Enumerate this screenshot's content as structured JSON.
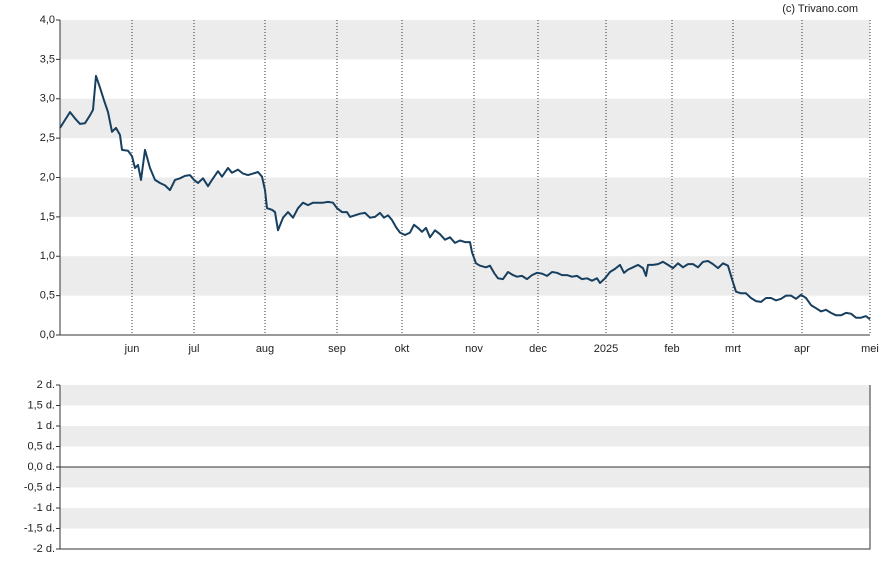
{
  "credit": "(c) Trivano.com",
  "chart_data": [
    {
      "type": "line",
      "x": [
        0,
        5,
        10,
        15,
        20,
        25,
        30,
        33,
        36,
        40,
        44,
        48,
        52,
        56,
        60,
        62,
        68,
        72,
        75,
        78,
        81,
        85,
        90,
        95,
        100,
        105,
        110,
        115,
        120,
        125,
        130,
        134,
        138,
        143,
        148,
        152,
        158,
        162,
        168,
        172,
        178,
        183,
        188,
        193,
        198,
        202,
        205,
        207,
        212,
        215,
        218,
        223,
        228,
        233,
        238,
        243,
        248,
        253,
        258,
        263,
        268,
        273,
        277,
        282,
        287,
        290,
        295,
        300,
        305,
        310,
        315,
        320,
        324,
        328,
        332,
        336,
        340,
        345,
        350,
        354,
        358,
        362,
        366,
        370,
        375,
        380,
        385,
        390,
        395,
        400,
        405,
        410,
        412,
        416,
        420,
        426,
        430,
        434,
        438,
        443,
        448,
        453,
        457,
        462,
        467,
        472,
        477,
        482,
        487,
        492,
        497,
        502,
        507,
        512,
        517,
        522,
        527,
        532,
        537,
        540,
        545,
        550,
        555,
        560,
        564,
        568,
        573,
        578,
        583,
        586,
        588,
        593,
        598,
        603,
        608,
        613,
        618,
        623,
        628,
        633,
        638,
        643,
        648,
        653,
        658,
        663,
        668,
        672,
        676,
        681,
        686,
        691,
        696,
        701,
        706,
        711,
        716,
        721,
        726,
        731,
        736,
        741,
        746,
        751,
        756,
        761,
        766,
        771,
        776,
        781,
        786,
        791,
        796,
        801,
        806,
        810
      ],
      "series": [
        {
          "color": "#173f5f",
          "values": [
            2.63,
            2.73,
            2.83,
            2.75,
            2.68,
            2.69,
            2.79,
            2.86,
            3.29,
            3.14,
            2.98,
            2.83,
            2.58,
            2.63,
            2.54,
            2.35,
            2.34,
            2.27,
            2.12,
            2.16,
            1.97,
            2.35,
            2.12,
            1.97,
            1.93,
            1.9,
            1.84,
            1.97,
            1.99,
            2.02,
            2.03,
            1.97,
            1.93,
            1.99,
            1.89,
            1.97,
            2.08,
            2.01,
            2.12,
            2.06,
            2.1,
            2.05,
            2.03,
            2.05,
            2.07,
            2.01,
            1.84,
            1.61,
            1.59,
            1.56,
            1.33,
            1.49,
            1.56,
            1.49,
            1.61,
            1.68,
            1.65,
            1.68,
            1.68,
            1.68,
            1.69,
            1.68,
            1.61,
            1.56,
            1.56,
            1.5,
            1.52,
            1.54,
            1.55,
            1.49,
            1.5,
            1.55,
            1.49,
            1.52,
            1.46,
            1.37,
            1.3,
            1.27,
            1.3,
            1.4,
            1.36,
            1.31,
            1.36,
            1.24,
            1.33,
            1.28,
            1.21,
            1.24,
            1.17,
            1.2,
            1.18,
            1.18,
            1.05,
            0.91,
            0.88,
            0.86,
            0.88,
            0.79,
            0.72,
            0.71,
            0.8,
            0.76,
            0.74,
            0.75,
            0.71,
            0.76,
            0.79,
            0.78,
            0.75,
            0.8,
            0.79,
            0.76,
            0.76,
            0.74,
            0.75,
            0.71,
            0.72,
            0.69,
            0.72,
            0.66,
            0.72,
            0.8,
            0.84,
            0.89,
            0.79,
            0.83,
            0.86,
            0.89,
            0.85,
            0.75,
            0.89,
            0.89,
            0.9,
            0.93,
            0.89,
            0.85,
            0.91,
            0.86,
            0.9,
            0.9,
            0.86,
            0.93,
            0.94,
            0.9,
            0.85,
            0.91,
            0.88,
            0.71,
            0.55,
            0.53,
            0.53,
            0.47,
            0.43,
            0.42,
            0.47,
            0.47,
            0.44,
            0.46,
            0.5,
            0.5,
            0.46,
            0.51,
            0.47,
            0.38,
            0.34,
            0.3,
            0.32,
            0.28,
            0.25,
            0.25,
            0.28,
            0.27,
            0.22,
            0.22,
            0.24,
            0.2
          ]
        }
      ],
      "xlim": [
        0,
        810
      ],
      "xticks": [
        {
          "value": 72,
          "label": "jun"
        },
        {
          "value": 134,
          "label": "jul"
        },
        {
          "value": 205,
          "label": "aug"
        },
        {
          "value": 277,
          "label": "sep"
        },
        {
          "value": 342,
          "label": "okt"
        },
        {
          "value": 414,
          "label": "nov"
        },
        {
          "value": 478,
          "label": "dec"
        },
        {
          "value": 546,
          "label": "2025"
        },
        {
          "value": 612,
          "label": "feb"
        },
        {
          "value": 673,
          "label": "mrt"
        },
        {
          "value": 742,
          "label": "apr"
        },
        {
          "value": 810,
          "label": "mei"
        }
      ],
      "ylim": [
        0,
        4
      ],
      "yticks": [
        {
          "value": 0,
          "label": "0,0"
        },
        {
          "value": 0.5,
          "label": "0,5"
        },
        {
          "value": 1,
          "label": "1,0"
        },
        {
          "value": 1.5,
          "label": "1,5"
        },
        {
          "value": 2,
          "label": "2,0"
        },
        {
          "value": 2.5,
          "label": "2,5"
        },
        {
          "value": 3,
          "label": "3,0"
        },
        {
          "value": 3.5,
          "label": "3,5"
        },
        {
          "value": 4,
          "label": "4,0"
        }
      ],
      "grid": true
    },
    {
      "type": "bar",
      "ylim": [
        -2,
        2
      ],
      "yticks": [
        {
          "value": -2,
          "label": "-2 d."
        },
        {
          "value": -1.5,
          "label": "-1,5 d."
        },
        {
          "value": -1,
          "label": "-1 d."
        },
        {
          "value": -0.5,
          "label": "-0,5 d."
        },
        {
          "value": 0,
          "label": "0,0 d."
        },
        {
          "value": 0.5,
          "label": "0,5 d."
        },
        {
          "value": 1,
          "label": "1 d."
        },
        {
          "value": 1.5,
          "label": "1,5 d."
        },
        {
          "value": 2,
          "label": "2 d."
        }
      ],
      "grid": true
    }
  ]
}
